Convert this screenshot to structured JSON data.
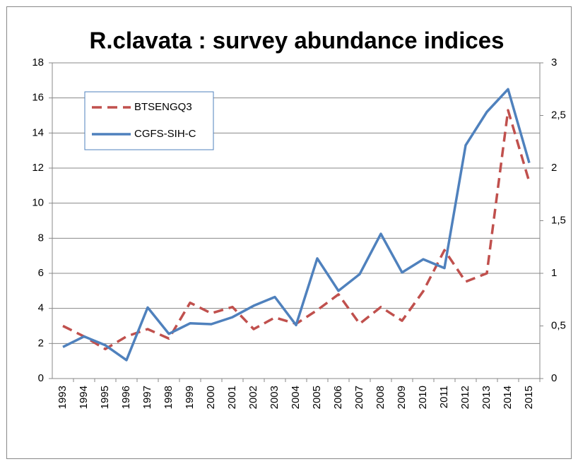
{
  "chart_data": {
    "type": "line",
    "title": "R.clavata : survey abundance indices",
    "categories": [
      "1993",
      "1994",
      "1995",
      "1996",
      "1997",
      "1998",
      "1999",
      "2000",
      "2001",
      "2002",
      "2003",
      "2004",
      "2005",
      "2006",
      "2007",
      "2008",
      "2009",
      "2010",
      "2011",
      "2012",
      "2013",
      "2014",
      "2015"
    ],
    "series": [
      {
        "name": "BTSENGQ3",
        "color": "#c0504d",
        "line_style": "dashed",
        "axis": "y2",
        "values": [
          0.5,
          0.4,
          0.28,
          0.4,
          0.47,
          0.38,
          0.72,
          0.62,
          0.68,
          0.47,
          0.58,
          0.52,
          0.65,
          0.8,
          0.52,
          0.68,
          0.55,
          0.83,
          1.22,
          0.92,
          1.0,
          2.55,
          1.87
        ]
      },
      {
        "name": "CGFS-SIH-C",
        "color": "#4f81bd",
        "line_style": "solid",
        "values": [
          1.8,
          2.4,
          1.9,
          1.05,
          4.05,
          2.55,
          3.15,
          3.1,
          3.5,
          4.15,
          4.65,
          3.05,
          6.85,
          5.0,
          5.95,
          8.25,
          6.05,
          6.8,
          6.3,
          13.3,
          15.2,
          16.5,
          12.3
        ]
      }
    ],
    "ylim": [
      0,
      18
    ],
    "yticks": [
      0,
      2,
      4,
      6,
      8,
      10,
      12,
      14,
      16,
      18
    ],
    "y2lim": [
      0,
      3
    ],
    "y2ticks": [
      0,
      {
        "value": 0.5,
        "label": "0,5"
      },
      1,
      {
        "value": 1.5,
        "label": "1,5"
      },
      2,
      {
        "value": 2.5,
        "label": "2,5"
      },
      3
    ],
    "grid": true,
    "legend": "upper left"
  }
}
